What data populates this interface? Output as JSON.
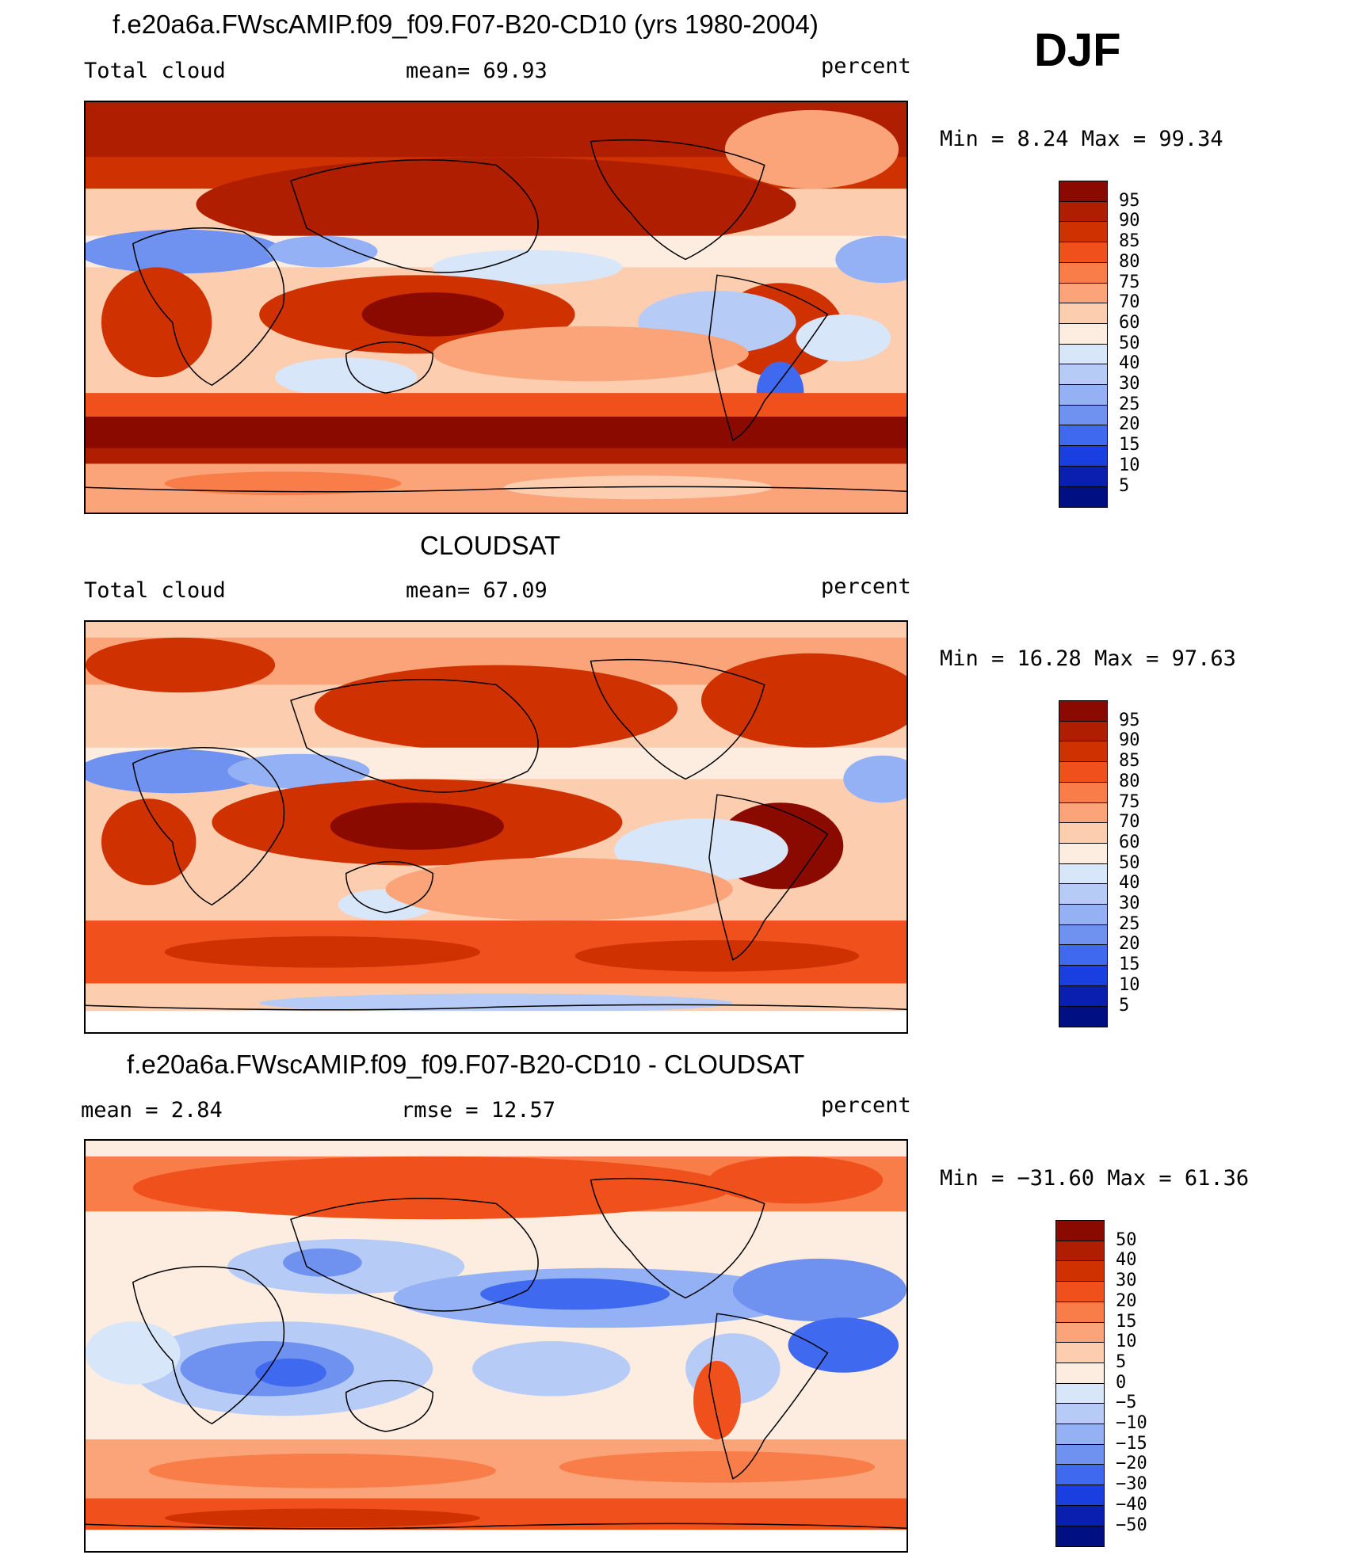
{
  "season": "DJF",
  "panels": [
    {
      "title": "f.e20a6a.FWscAMIP.f09_f09.F07-B20-CD10 (yrs 1980-2004)",
      "left_label": "Total cloud",
      "mid_label": "mean=   69.93",
      "units": "percent",
      "minmax": "Min =   8.24 Max =   99.34",
      "colorbar": {
        "labels": [
          "95",
          "90",
          "85",
          "80",
          "75",
          "70",
          "60",
          "50",
          "40",
          "30",
          "25",
          "20",
          "15",
          "10",
          "5"
        ],
        "colors": [
          "#8b0a00",
          "#b01e00",
          "#cf3200",
          "#f0501c",
          "#f97d48",
          "#fba47a",
          "#fdcdb0",
          "#fdece0",
          "#d8e6fa",
          "#b6ccf6",
          "#93b1f4",
          "#6f92f0",
          "#3f6af0",
          "#1a3fe0",
          "#0a1fb0",
          "#001082"
        ]
      }
    },
    {
      "title": "CLOUDSAT",
      "left_label": "Total cloud",
      "mid_label": "mean=   67.09",
      "units": "percent",
      "minmax": "Min =  16.28 Max =   97.63",
      "colorbar": {
        "labels": [
          "95",
          "90",
          "85",
          "80",
          "75",
          "70",
          "60",
          "50",
          "40",
          "30",
          "25",
          "20",
          "15",
          "10",
          "5"
        ],
        "colors": [
          "#8b0a00",
          "#b01e00",
          "#cf3200",
          "#f0501c",
          "#f97d48",
          "#fba47a",
          "#fdcdb0",
          "#fdece0",
          "#d8e6fa",
          "#b6ccf6",
          "#93b1f4",
          "#6f92f0",
          "#3f6af0",
          "#1a3fe0",
          "#0a1fb0",
          "#001082"
        ]
      }
    },
    {
      "title": "f.e20a6a.FWscAMIP.f09_f09.F07-B20-CD10 - CLOUDSAT",
      "left_label": "mean =    2.84",
      "mid_label": "rmse =    12.57",
      "units": "percent",
      "minmax": "Min = −31.60 Max =   61.36",
      "colorbar": {
        "labels": [
          "50",
          "40",
          "30",
          "20",
          "15",
          "10",
          "5",
          "0",
          "−5",
          "−10",
          "−15",
          "−20",
          "−30",
          "−40",
          "−50"
        ],
        "colors": [
          "#8b0a00",
          "#b01e00",
          "#cf3200",
          "#f0501c",
          "#f97d48",
          "#fba47a",
          "#fdcdb0",
          "#fdece0",
          "#d8e6fa",
          "#b6ccf6",
          "#93b1f4",
          "#6f92f0",
          "#3f6af0",
          "#1a3fe0",
          "#0a1fb0",
          "#001082"
        ]
      }
    }
  ]
}
